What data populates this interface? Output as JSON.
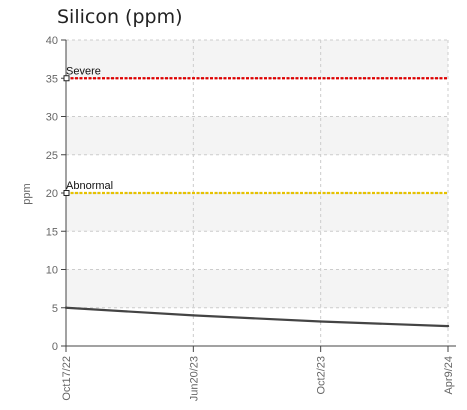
{
  "colors": {
    "band": "#f4f4f4",
    "grid": "#cccccc",
    "axis": "#444444",
    "severe": "#dd0000",
    "abnormal": "#e6c200",
    "series": "#444444"
  },
  "chart_data": {
    "type": "line",
    "title": "Silicon (ppm)",
    "xlabel": "",
    "ylabel": "ppm",
    "ylim": [
      0,
      40
    ],
    "y_ticks": [
      0,
      5,
      10,
      15,
      20,
      25,
      30,
      35,
      40
    ],
    "x_ticks": [
      "Oct17/22",
      "Jun20/23",
      "Oct2/23",
      "Apr9/24"
    ],
    "grid": true,
    "thresholds": [
      {
        "label": "Severe",
        "value": 35,
        "color": "#dd0000"
      },
      {
        "label": "Abnormal",
        "value": 20,
        "color": "#e6c200"
      }
    ],
    "series": [
      {
        "points": [
          {
            "x": "Oct17/22",
            "y": 5
          },
          {
            "x": "Jun20/23",
            "y": 4
          },
          {
            "x": "Oct2/23",
            "y": 3.2
          },
          {
            "x": "Apr9/24",
            "y": 2.6
          }
        ]
      }
    ]
  }
}
